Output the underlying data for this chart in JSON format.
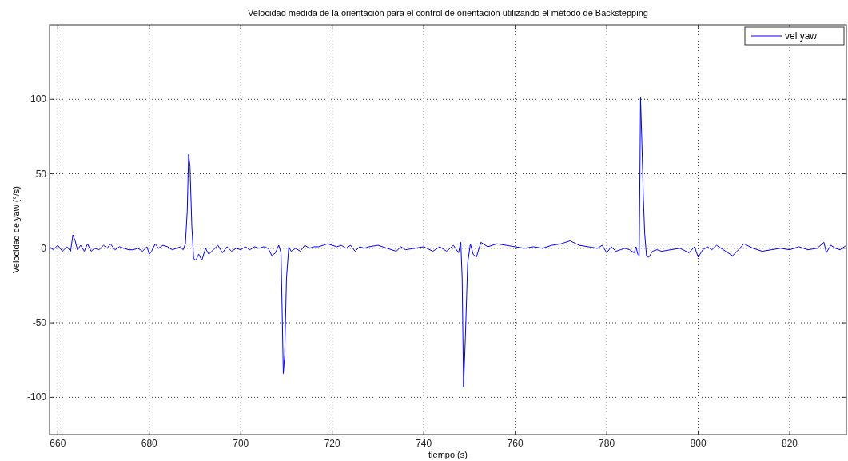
{
  "chart_data": {
    "type": "line",
    "title": "Velocidad medida de la orientación para el control de orientación utilizando el método de Backstepping",
    "xlabel": "tiempo (s)",
    "ylabel": "Velocidad de yaw (°/s)",
    "xlim": [
      658.2,
      832.4
    ],
    "ylim": [
      -125,
      150
    ],
    "xticks": [
      660,
      680,
      700,
      720,
      740,
      760,
      780,
      800,
      820
    ],
    "yticks": [
      -100,
      -50,
      0,
      50,
      100
    ],
    "grid": true,
    "legend": "top right",
    "line_style": "solid",
    "marker": "none",
    "series": [
      {
        "name": "vel yaw",
        "color": "#0000ff",
        "x": [
          658.2,
          659,
          660,
          661,
          662,
          662.8,
          663.3,
          663.8,
          664.3,
          665,
          665.8,
          666.5,
          667.3,
          668,
          669,
          670,
          670.8,
          671.5,
          672.5,
          673.5,
          674.5,
          675.5,
          676.5,
          677.5,
          678.5,
          679.5,
          680,
          680.5,
          681.3,
          682,
          683,
          684,
          685,
          686,
          686.8,
          687.4,
          687.9,
          688.3,
          688.6,
          688.9,
          689.3,
          689.7,
          690.2,
          690.8,
          691.5,
          692.3,
          693,
          694,
          695,
          696,
          697,
          698,
          699,
          700,
          701,
          702,
          703,
          704,
          705,
          706,
          706.8,
          707.6,
          708.3,
          708.8,
          709.1,
          709.3,
          709.6,
          710,
          710.5,
          711,
          712,
          713,
          714,
          715,
          716,
          717,
          718,
          719,
          720,
          721,
          722,
          723,
          724,
          725,
          726,
          727,
          728,
          730,
          732,
          734,
          735,
          736,
          738,
          740,
          742,
          743.5,
          745,
          746.5,
          747.6,
          748.1,
          748.4,
          748.7,
          749.1,
          749.6,
          750.2,
          750.8,
          751.5,
          752.5,
          754,
          756,
          758,
          760,
          762,
          764,
          766,
          768,
          770,
          772,
          774,
          776,
          778,
          779,
          780,
          781,
          782,
          783,
          784,
          785,
          786,
          786.4,
          786.8,
          787.1,
          787.4,
          787.7,
          788,
          788.3,
          788.7,
          789.2,
          790,
          791,
          792,
          794,
          796,
          798,
          799.2,
          800,
          801,
          802,
          803,
          804,
          806,
          807.5,
          808.5,
          810,
          812,
          814,
          816,
          818,
          820,
          822,
          824,
          826,
          827.5,
          828,
          829,
          830,
          831,
          832.4
        ],
        "values": [
          1,
          -1,
          2,
          -2,
          1,
          -2,
          9,
          5,
          -1,
          2,
          -2,
          3,
          -2,
          0,
          -1,
          2,
          0,
          3,
          -1,
          1,
          0,
          -1,
          -1,
          0,
          -2,
          1,
          -4,
          -2,
          3,
          0,
          2,
          1,
          -1,
          0,
          1,
          -1,
          3,
          25,
          63,
          55,
          15,
          -7,
          -8,
          -4,
          -8,
          0,
          -4,
          -1,
          2,
          -3,
          1,
          -2,
          0,
          -1,
          1,
          -1,
          1,
          0,
          1,
          0,
          -5,
          -3,
          2,
          -3,
          -50,
          -84,
          -72,
          -20,
          1,
          -2,
          0,
          -2,
          2,
          0,
          1,
          1,
          2,
          3,
          2,
          1,
          2,
          0,
          2,
          -2,
          1,
          0,
          1,
          2,
          0,
          -2,
          1,
          -1,
          0,
          1,
          -2,
          1,
          -2,
          2,
          -3,
          4,
          -20,
          -93,
          -60,
          -10,
          3,
          -4,
          -6,
          4,
          1,
          3,
          2,
          1,
          0,
          1,
          0,
          2,
          3,
          5,
          2,
          1,
          0,
          2,
          -3,
          1,
          -2,
          -1,
          0,
          -1,
          -3,
          1,
          -4,
          -5,
          101,
          70,
          35,
          10,
          -5,
          -6,
          -2,
          -1,
          -2,
          -1,
          0,
          -3,
          1,
          -6,
          -1,
          1,
          -1,
          2,
          -2,
          -5,
          -2,
          3,
          0,
          -2,
          -1,
          0,
          -1,
          1,
          -1,
          0,
          4,
          -3,
          2,
          0,
          -1,
          2
        ]
      }
    ]
  }
}
